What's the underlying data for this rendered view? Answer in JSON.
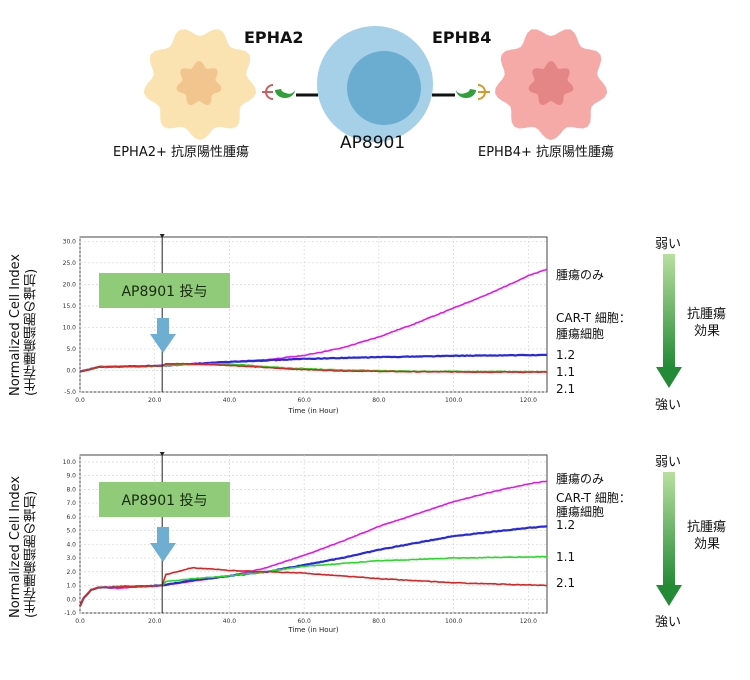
{
  "diagram": {
    "left_target": "EPHA2",
    "right_target": "EPHB4",
    "center_cell": "AP8901",
    "left_tumor_label": "EPHA2+ 抗原陽性腫瘍",
    "right_tumor_label": "EPHB4+ 抗原陽性腫瘍",
    "colors": {
      "left_tumor": "#fae3b0",
      "left_nucleus": "#f2c48e",
      "right_tumor": "#f6aaa8",
      "right_nucleus": "#e48586",
      "tcell_outer": "#a6cfe8",
      "tcell_inner": "#6aadd0",
      "binder": "#2fa03a"
    }
  },
  "side_scale": {
    "top": "弱い",
    "bottom": "強い",
    "middle": [
      "抗腫瘍",
      "効果"
    ]
  },
  "y_axis_label": "Normalized Cell Index",
  "y_axis_sublabel": "(生存腫瘍細胞の増加)",
  "dosing_label": "AP8901 投与",
  "legend_labels": {
    "tumor_only": "腫瘍のみ",
    "cart_ratio": [
      "CAR-T 細胞：",
      "腫瘍細胞"
    ]
  },
  "chart_data": [
    {
      "type": "line",
      "xlabel": "Time (in Hour)",
      "xlim": [
        0,
        125
      ],
      "ylim": [
        -5,
        31
      ],
      "xticks": [
        0,
        20,
        40,
        60,
        80,
        100,
        120
      ],
      "xtick_labels": [
        "0.0",
        "20.0",
        "40.0",
        "60.0",
        "80.0",
        "100.0",
        "120.0"
      ],
      "yticks": [
        -5,
        0,
        5,
        10,
        15,
        20,
        25,
        30
      ],
      "ytick_labels": [
        "-5.0",
        "0.0",
        "5.0",
        "10.0",
        "15.0",
        "20.0",
        "25.0",
        "30.0"
      ],
      "grid": true,
      "dosing_time": 22,
      "series": [
        {
          "name": "腫瘍のみ",
          "color": "#e815e8",
          "x": [
            0,
            5,
            10,
            15,
            20,
            22,
            30,
            40,
            50,
            60,
            70,
            80,
            90,
            100,
            110,
            120,
            125
          ],
          "y": [
            -0.3,
            0.8,
            0.9,
            0.9,
            1.0,
            1.2,
            1.6,
            2.0,
            2.5,
            3.5,
            5.2,
            7.8,
            11.0,
            14.5,
            18.0,
            22.0,
            23.5
          ]
        },
        {
          "name": "1.2",
          "color": "#2727e6",
          "x": [
            0,
            5,
            22,
            40,
            60,
            80,
            100,
            125
          ],
          "y": [
            -0.3,
            0.8,
            1.1,
            2.0,
            2.7,
            3.1,
            3.4,
            3.6
          ]
        },
        {
          "name": "1.1",
          "color": "#22dd22",
          "x": [
            0,
            5,
            22,
            30,
            40,
            55,
            70,
            90,
            125
          ],
          "y": [
            -0.3,
            0.8,
            1.1,
            1.4,
            1.5,
            0.6,
            0.1,
            -0.2,
            -0.3
          ]
        },
        {
          "name": "2.1",
          "color": "#dd2222",
          "x": [
            0,
            5,
            22,
            23,
            30,
            40,
            55,
            70,
            90,
            125
          ],
          "y": [
            -0.3,
            0.8,
            1.1,
            1.6,
            1.5,
            1.2,
            0.4,
            -0.1,
            -0.3,
            -0.4
          ]
        }
      ]
    },
    {
      "type": "line",
      "xlabel": "Time (in Hour)",
      "xlim": [
        0,
        125
      ],
      "ylim": [
        -1,
        10.5
      ],
      "xticks": [
        0,
        20,
        40,
        60,
        80,
        100,
        120
      ],
      "xtick_labels": [
        "0.0",
        "20.0",
        "40.0",
        "60.0",
        "80.0",
        "100.0",
        "120.0"
      ],
      "yticks": [
        -1,
        0,
        1,
        2,
        3,
        4,
        5,
        6,
        7,
        8,
        9,
        10
      ],
      "ytick_labels": [
        "-1.0",
        "0.0",
        "1.0",
        "2.0",
        "3.0",
        "4.0",
        "5.0",
        "6.0",
        "7.0",
        "8.0",
        "9.0",
        "10.0"
      ],
      "grid": true,
      "dosing_time": 22,
      "series": [
        {
          "name": "腫瘍のみ",
          "color": "#e815e8",
          "x": [
            0,
            1,
            3,
            5,
            10,
            15,
            20,
            22,
            30,
            40,
            50,
            60,
            70,
            80,
            90,
            100,
            110,
            120,
            125
          ],
          "y": [
            -0.5,
            0.1,
            0.7,
            0.85,
            0.8,
            0.9,
            0.95,
            1.0,
            1.3,
            1.7,
            2.3,
            3.2,
            4.2,
            5.3,
            6.2,
            7.1,
            7.8,
            8.4,
            8.6
          ]
        },
        {
          "name": "1.2",
          "color": "#2727e6",
          "x": [
            0,
            1,
            3,
            5,
            22,
            30,
            40,
            50,
            60,
            70,
            80,
            90,
            100,
            110,
            120,
            125
          ],
          "y": [
            -0.5,
            0.1,
            0.7,
            0.85,
            1.0,
            1.4,
            1.7,
            2.0,
            2.5,
            3.0,
            3.6,
            4.1,
            4.6,
            4.9,
            5.2,
            5.3
          ]
        },
        {
          "name": "1.1",
          "color": "#22dd22",
          "x": [
            0,
            1,
            3,
            5,
            22,
            23,
            30,
            40,
            50,
            60,
            80,
            100,
            125
          ],
          "y": [
            -0.5,
            0.1,
            0.7,
            0.85,
            1.0,
            1.3,
            1.5,
            1.7,
            2.0,
            2.4,
            2.8,
            3.0,
            3.1
          ]
        },
        {
          "name": "2.1",
          "color": "#dd2222",
          "x": [
            0,
            1,
            3,
            5,
            22,
            23,
            30,
            40,
            50,
            60,
            80,
            100,
            125
          ],
          "y": [
            -0.5,
            0.1,
            0.7,
            0.85,
            1.0,
            1.8,
            2.3,
            2.1,
            2.0,
            1.9,
            1.5,
            1.2,
            1.0
          ]
        }
      ]
    }
  ]
}
